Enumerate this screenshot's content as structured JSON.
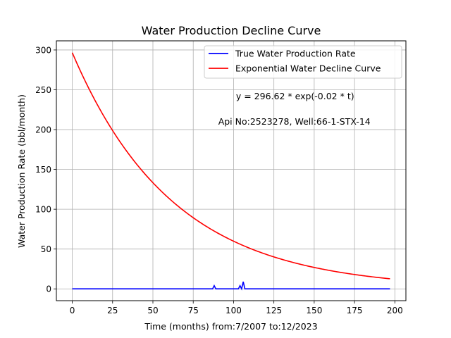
{
  "chart_data": {
    "type": "line",
    "title": "Water Production Decline Curve",
    "xlabel": "Time (months) from:7/2007 to:12/2023",
    "ylabel": "Water Production Rate (bbl/month)",
    "xlim": [
      -9.85,
      206.85
    ],
    "ylim": [
      -14.83,
      311.45
    ],
    "xticks": [
      0,
      25,
      50,
      75,
      100,
      125,
      150,
      175,
      200
    ],
    "yticks": [
      0,
      50,
      100,
      150,
      200,
      250,
      300
    ],
    "grid": true,
    "legend_position": "top-right",
    "annotations": [
      {
        "text": "y = 296.62 * exp(-0.02 * t)",
        "x": 101.5,
        "y": 242
      },
      {
        "text": "Api No:2523278, Well:66-1-STX-14",
        "x": 90.5,
        "y": 210
      }
    ],
    "fit": {
      "a": 296.62,
      "b": 0.016,
      "t_max": 197
    },
    "series": [
      {
        "name": "True Water Production Rate",
        "color": "#0000ff",
        "points": [
          [
            0,
            0
          ],
          [
            87,
            0
          ],
          [
            88,
            4
          ],
          [
            89,
            0
          ],
          [
            103,
            0
          ],
          [
            104,
            4
          ],
          [
            105,
            0
          ],
          [
            106,
            9
          ],
          [
            107,
            0
          ],
          [
            197,
            0
          ]
        ]
      },
      {
        "name": "Exponential Water Decline Curve",
        "color": "#ff0000",
        "generated_from": "fit"
      }
    ]
  }
}
